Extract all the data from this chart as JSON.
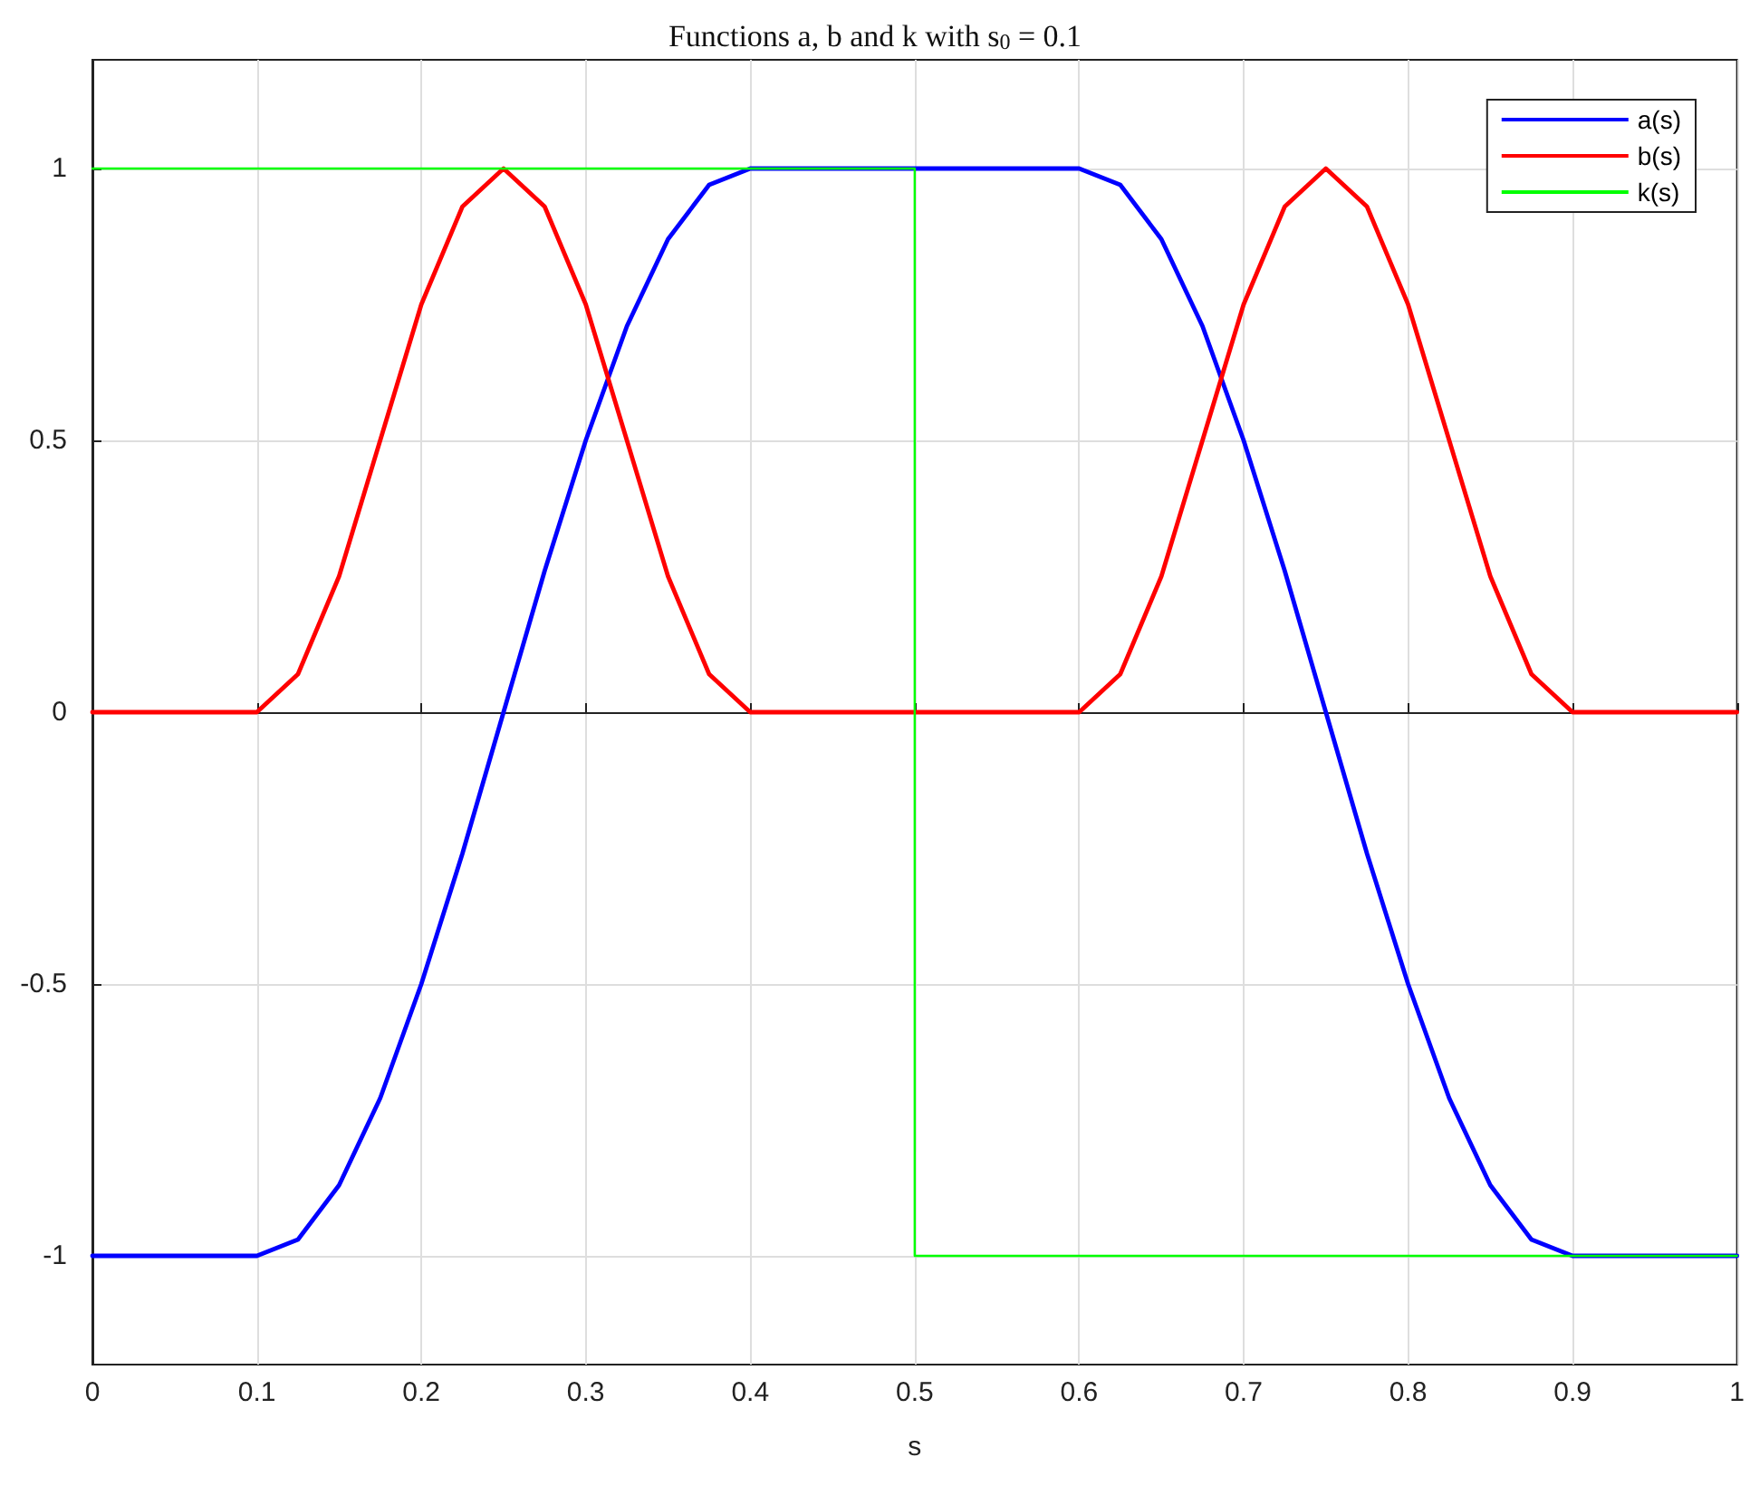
{
  "chart_data": {
    "type": "line",
    "title": "Functions a, b and k with s$_{0}$ = 0.1",
    "xlabel": "s",
    "x": [
      0,
      0.1,
      0.125,
      0.15,
      0.175,
      0.2,
      0.225,
      0.25,
      0.275,
      0.3,
      0.325,
      0.35,
      0.375,
      0.4,
      0.5,
      0.6,
      0.625,
      0.65,
      0.675,
      0.7,
      0.725,
      0.75,
      0.775,
      0.8,
      0.825,
      0.85,
      0.875,
      0.9,
      1
    ],
    "series": [
      {
        "name": "a(s)",
        "color": "#0000ff",
        "values": [
          -1,
          -1,
          -0.97,
          -0.87,
          -0.71,
          -0.5,
          -0.26,
          0,
          0.26,
          0.5,
          0.71,
          0.87,
          0.97,
          1,
          1,
          1,
          0.97,
          0.87,
          0.71,
          0.5,
          0.26,
          0,
          -0.26,
          -0.5,
          -0.71,
          -0.87,
          -0.97,
          -1,
          -1
        ]
      },
      {
        "name": "b(s)",
        "color": "#ff0000",
        "values": [
          0,
          0,
          0.07,
          0.25,
          0.5,
          0.75,
          0.93,
          1,
          0.93,
          0.75,
          0.5,
          0.25,
          0.07,
          0,
          0,
          0,
          0.07,
          0.25,
          0.5,
          0.75,
          0.93,
          1,
          0.93,
          0.75,
          0.5,
          0.25,
          0.07,
          0,
          0
        ]
      },
      {
        "name": "k(s)",
        "color": "#00ff00",
        "x": [
          0,
          0.5,
          0.5,
          1
        ],
        "values": [
          1,
          1,
          -1,
          -1
        ]
      }
    ],
    "xlim": [
      0,
      1
    ],
    "xticks": [
      0,
      0.1,
      0.2,
      0.3,
      0.4,
      0.5,
      0.6,
      0.7,
      0.8,
      0.9,
      1
    ],
    "ylim": [
      -1.2,
      1.2
    ],
    "yticks": [
      -1,
      -0.5,
      0,
      0.5,
      1
    ],
    "grid": true,
    "legend": "top right",
    "marker": "none",
    "line_style": "solid"
  }
}
